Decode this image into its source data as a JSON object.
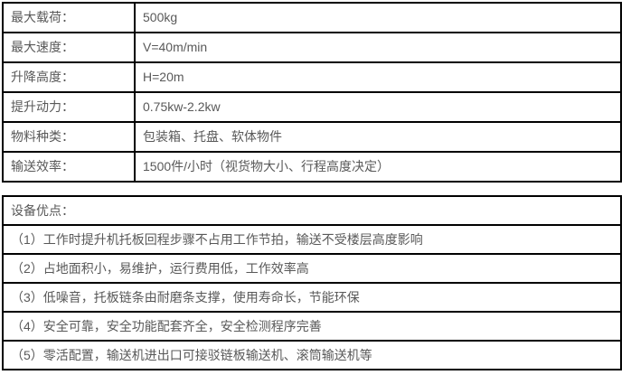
{
  "spec_table": {
    "rows": [
      {
        "label": "最大载荷：",
        "value": "500kg"
      },
      {
        "label": "最大速度：",
        "value": "V=40m/min"
      },
      {
        "label": "升降高度：",
        "value": "H=20m"
      },
      {
        "label": "提升动力：",
        "value": "0.75kw-2.2kw"
      },
      {
        "label": "物料种类：",
        "value": "包装箱、托盘、软体物件"
      },
      {
        "label": "输送效率：",
        "value": "1500件/小时（视货物大小、行程高度决定）"
      }
    ]
  },
  "advantages_table": {
    "header": "设备优点：",
    "items": [
      "（1）工作时提升机托板回程步骤不占用工作节拍，输送不受楼层高度影响",
      "（2）占地面积小，易维护，运行费用低，工作效率高",
      "（3）低噪音，托板链条由耐磨条支撑，使用寿命长，节能环保",
      "（4）安全可靠，安全功能配套齐全，安全检测程序完善",
      "（5）零活配置，输送机进出口可接驳链板输送机、滚筒输送机等"
    ]
  },
  "colors": {
    "border": "#000000",
    "text": "#595959",
    "background": "#ffffff"
  }
}
